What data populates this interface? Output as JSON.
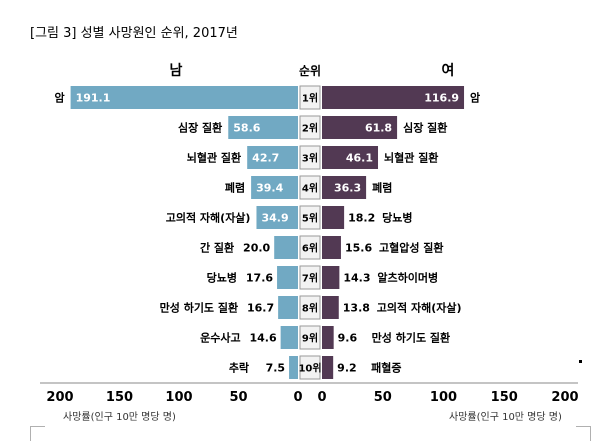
{
  "chart_data": {
    "type": "bar",
    "title": "[그림 3] 성별 사망원인 순위, 2017년",
    "rank_header": "순위",
    "ranks": [
      "1위",
      "2위",
      "3위",
      "4위",
      "5위",
      "6위",
      "7위",
      "8위",
      "9위",
      "10위"
    ],
    "xlabel_left": "사망률(인구 10만 명당 명)",
    "xlabel_right": "사망률(인구 10만 명당 명)",
    "xlim": [
      0,
      200
    ],
    "ticks": [
      200,
      150,
      100,
      50,
      0
    ],
    "ticks_right": [
      0,
      50,
      100,
      150,
      200
    ],
    "series": [
      {
        "name": "남",
        "color": "#71a9c3",
        "categories": [
          "암",
          "심장 질환",
          "뇌혈관 질환",
          "폐렴",
          "고의적 자해(자살)",
          "간 질환",
          "당뇨병",
          "만성 하기도 질환",
          "운수사고",
          "추락"
        ],
        "values": [
          191.1,
          58.6,
          42.7,
          39.4,
          34.9,
          20.0,
          17.6,
          16.7,
          14.6,
          7.5
        ],
        "value_labels": [
          "191.1",
          "58.6",
          "42.7",
          "39.4",
          "34.9",
          "20.0",
          "17.6",
          "16.7",
          "14.6",
          "7.5"
        ]
      },
      {
        "name": "여",
        "color": "#523953",
        "categories": [
          "암",
          "심장 질환",
          "뇌혈관 질환",
          "폐렴",
          "당뇨병",
          "고혈압성 질환",
          "알츠하이머병",
          "고의적 자해(자살)",
          "만성 하기도 질환",
          "패혈증"
        ],
        "values": [
          116.9,
          61.8,
          46.1,
          36.3,
          18.2,
          15.6,
          14.3,
          13.8,
          9.6,
          9.2
        ],
        "value_labels": [
          "116.9",
          "61.8",
          "46.1",
          "36.3",
          "18.2",
          "15.6",
          "14.3",
          "13.8",
          "9.6",
          "9.2"
        ]
      }
    ]
  }
}
